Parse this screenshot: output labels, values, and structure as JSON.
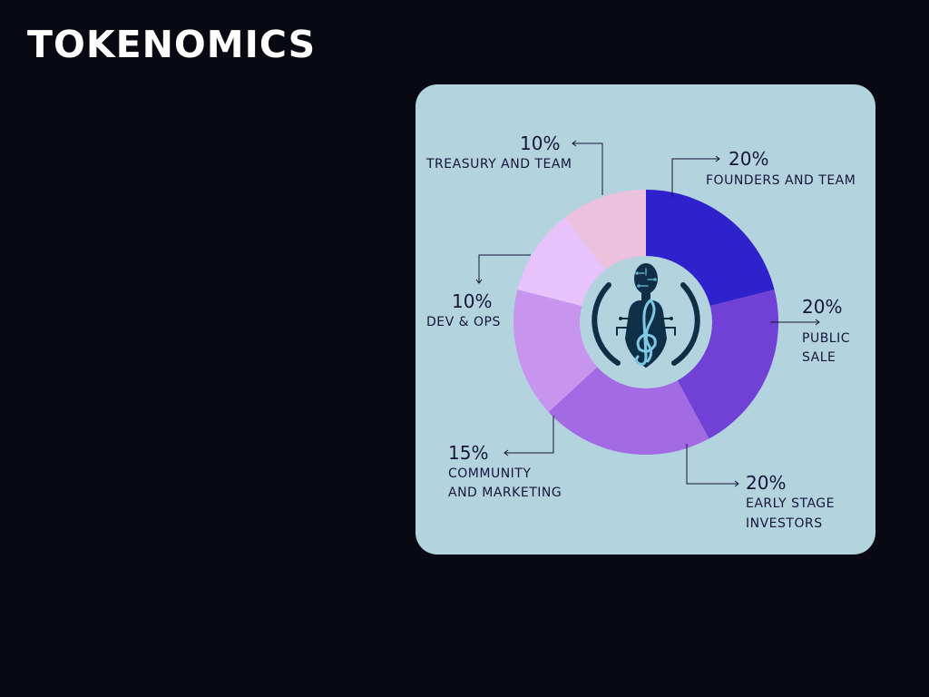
{
  "title": "TOKENOMICS",
  "colors": {
    "background": "#090914",
    "card": "#b3d3df",
    "text": "#16163a"
  },
  "chart_data": {
    "type": "pie",
    "center_image": "ai-robot-treble-clef-logo",
    "slices": [
      {
        "percent_label": "20%",
        "label_lines": [
          "FOUNDERS AND TEAM"
        ],
        "value": 20,
        "color": "#2e22cc"
      },
      {
        "percent_label": "20%",
        "label_lines": [
          "PUBLIC",
          "SALE"
        ],
        "value": 20,
        "color": "#7140d4"
      },
      {
        "percent_label": "20%",
        "label_lines": [
          "EARLY STAGE",
          "INVESTORS"
        ],
        "value": 20,
        "color": "#a26be3"
      },
      {
        "percent_label": "15%",
        "label_lines": [
          "COMMUNITY",
          "AND MARKETING"
        ],
        "value": 15,
        "color": "#c794ee"
      },
      {
        "percent_label": "10%",
        "label_lines": [
          "DEV & OPS"
        ],
        "value": 10,
        "color": "#e8c2fb"
      },
      {
        "percent_label": "10%",
        "label_lines": [
          "TREASURY AND TEAM"
        ],
        "value": 10,
        "color": "#ecc1de"
      }
    ]
  }
}
